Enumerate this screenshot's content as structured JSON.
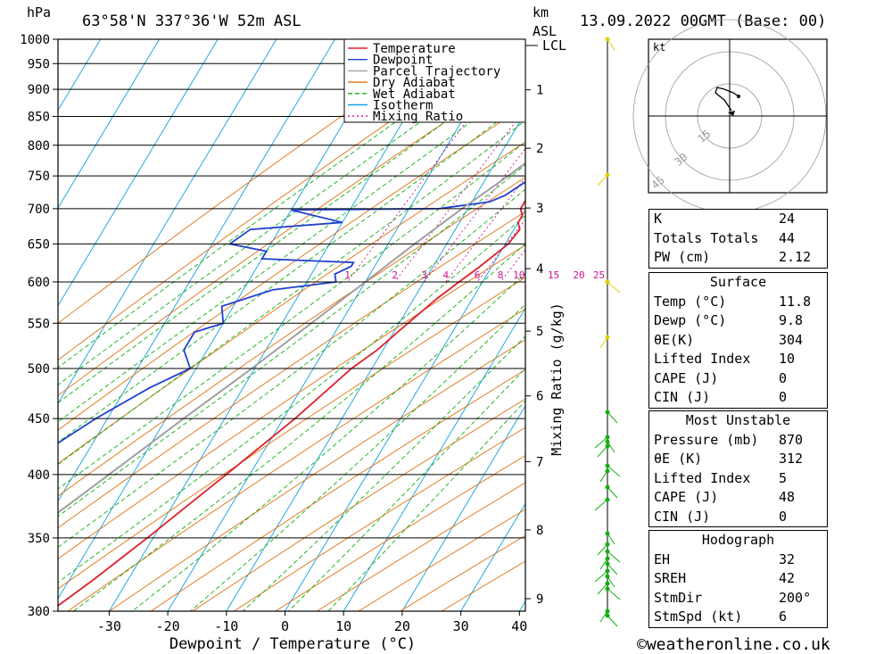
{
  "header": {
    "pressure_unit": "hPa",
    "location": "63°58'N  337°36'W  52m  ASL",
    "km_label": "km",
    "asl_label": "ASL",
    "datetime": "13.09.2022  00GMT  (Base: 00)"
  },
  "chart_data": {
    "type": "line",
    "subtype": "skew-T log-p diagram",
    "xlabel": "Dewpoint / Temperature (°C)",
    "ylabel": "hPa",
    "right_axis_label": "Mixing Ratio (g/kg)",
    "pressure_ticks": [
      "300",
      "350",
      "400",
      "450",
      "500",
      "550",
      "600",
      "650",
      "700",
      "750",
      "800",
      "850",
      "900",
      "950",
      "1000"
    ],
    "temperature_ticks": [
      "-30",
      "-20",
      "-10",
      "0",
      "10",
      "20",
      "30",
      "40"
    ],
    "km_ticks": [
      "1",
      "2",
      "3",
      "4",
      "5",
      "6",
      "7",
      "8",
      "9"
    ],
    "lcl_label": "LCL",
    "mixing_ratio_labels": [
      "1",
      "2",
      "3",
      "4",
      "6",
      "8",
      "10",
      "15",
      "20",
      "25"
    ],
    "legend": [
      {
        "label": "Temperature",
        "color": "#e0202a"
      },
      {
        "label": "Dewpoint",
        "color": "#2040d0"
      },
      {
        "label": "Parcel Trajectory",
        "color": "#a0a0a0"
      },
      {
        "label": "Dry Adiabat",
        "color": "#e07010"
      },
      {
        "label": "Wet Adiabat",
        "color": "#10b010"
      },
      {
        "label": "Isotherm",
        "color": "#10a0e0"
      },
      {
        "label": "Mixing Ratio",
        "color": "#d01090"
      }
    ],
    "series": [
      {
        "name": "Temperature",
        "unit": "°C",
        "points": [
          [
            1000,
            12
          ],
          [
            950,
            11
          ],
          [
            900,
            9.5
          ],
          [
            850,
            7
          ],
          [
            800,
            4
          ],
          [
            750,
            1
          ],
          [
            720,
            -1
          ],
          [
            700,
            -1
          ],
          [
            690,
            0
          ],
          [
            680,
            0
          ],
          [
            670,
            1
          ],
          [
            650,
            0.5
          ],
          [
            620,
            -2
          ],
          [
            600,
            -4
          ],
          [
            580,
            -6
          ],
          [
            550,
            -8.5
          ],
          [
            520,
            -11
          ],
          [
            500,
            -13.5
          ],
          [
            450,
            -18
          ],
          [
            400,
            -24
          ],
          [
            350,
            -31
          ],
          [
            320,
            -36
          ],
          [
            300,
            -40
          ]
        ]
      },
      {
        "name": "Dewpoint",
        "unit": "°C",
        "points": [
          [
            1000,
            10
          ],
          [
            950,
            9
          ],
          [
            900,
            8
          ],
          [
            850,
            6
          ],
          [
            800,
            2
          ],
          [
            750,
            -2
          ],
          [
            720,
            -5
          ],
          [
            710,
            -7
          ],
          [
            700,
            -15
          ],
          [
            698,
            -40
          ],
          [
            680,
            -30
          ],
          [
            670,
            -45
          ],
          [
            650,
            -47
          ],
          [
            640,
            -40
          ],
          [
            630,
            -40
          ],
          [
            625,
            -24
          ],
          [
            620,
            -24
          ],
          [
            610,
            -26
          ],
          [
            600,
            -25
          ],
          [
            590,
            -35
          ],
          [
            570,
            -42
          ],
          [
            550,
            -40
          ],
          [
            540,
            -44
          ],
          [
            520,
            -44
          ],
          [
            500,
            -41
          ],
          [
            480,
            -46
          ],
          [
            450,
            -52
          ],
          [
            400,
            -61
          ],
          [
            390,
            -61
          ],
          [
            350,
            -70
          ],
          [
            330,
            -65
          ],
          [
            320,
            -69
          ],
          [
            300,
            -67
          ]
        ]
      },
      {
        "name": "Parcel Trajectory",
        "unit": "°C",
        "points": [
          [
            1000,
            12
          ],
          [
            960,
            10
          ],
          [
            900,
            5.5
          ],
          [
            850,
            1.5
          ],
          [
            800,
            -2.5
          ],
          [
            750,
            -6.5
          ],
          [
            700,
            -11
          ],
          [
            650,
            -15.5
          ],
          [
            600,
            -20
          ],
          [
            550,
            -25
          ],
          [
            500,
            -30.5
          ],
          [
            450,
            -37
          ],
          [
            400,
            -44
          ],
          [
            350,
            -52
          ],
          [
            300,
            -61
          ]
        ]
      }
    ],
    "wind_profile": {
      "points_count": 23
    }
  },
  "hodograph": {
    "unit_label": "kt",
    "ring_labels": [
      "15",
      "30",
      "45"
    ]
  },
  "indices": {
    "rows": [
      {
        "key": "K",
        "value": "24"
      },
      {
        "key": "Totals Totals",
        "value": "44"
      },
      {
        "key": "PW (cm)",
        "value": "2.12"
      }
    ]
  },
  "surface": {
    "title": "Surface",
    "rows": [
      {
        "key": "Temp (°C)",
        "value": "11.8"
      },
      {
        "key": "Dewp (°C)",
        "value": "9.8"
      },
      {
        "key": "θE(K)",
        "value": "304"
      },
      {
        "key": "Lifted Index",
        "value": "10"
      },
      {
        "key": "CAPE (J)",
        "value": "0"
      },
      {
        "key": "CIN (J)",
        "value": "0"
      }
    ]
  },
  "most_unstable": {
    "title": "Most Unstable",
    "rows": [
      {
        "key": "Pressure (mb)",
        "value": "870"
      },
      {
        "key": "θE (K)",
        "value": "312"
      },
      {
        "key": "Lifted Index",
        "value": "5"
      },
      {
        "key": "CAPE (J)",
        "value": "48"
      },
      {
        "key": "CIN (J)",
        "value": "0"
      }
    ]
  },
  "hodograph_table": {
    "title": "Hodograph",
    "rows": [
      {
        "key": "EH",
        "value": "32"
      },
      {
        "key": "SREH",
        "value": "42"
      },
      {
        "key": "StmDir",
        "value": "200°"
      },
      {
        "key": "StmSpd (kt)",
        "value": "6"
      }
    ]
  },
  "footer": {
    "copyright": "©weatheronline.co.uk"
  }
}
